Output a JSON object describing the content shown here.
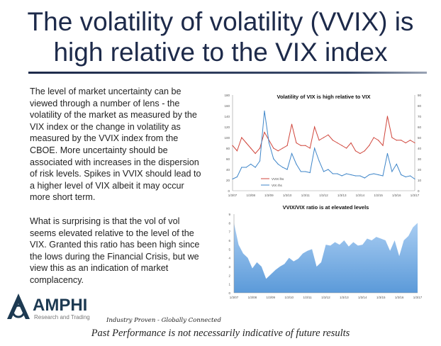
{
  "slide": {
    "title_lines": [
      "The volatility of volatility (VVIX) is",
      "high relative to the VIX index"
    ],
    "paragraph1": [
      "The level of market uncertainty can be",
      "viewed through  a number of lens - the",
      "volatility of the market as measured by the",
      "VIX index or the change in volatility as",
      "measured by the VVIX index from the",
      "CBOE. More uncertainty should be",
      "associated with increases in the dispersion",
      "of risk levels. Spikes in VVIX should lead to",
      "a higher level of VIX albeit it may occur",
      "more short term."
    ],
    "paragraph2": [
      "What is surprising is that the vol of vol",
      "seems elevated relative to the level of the",
      "VIX. Granted this ratio has been high since",
      "the lows during the Financial Crisis, but we",
      "view this as an indication of market",
      "complacency."
    ],
    "logo": {
      "name": "AMPHI",
      "subtitle": "Research and Trading"
    },
    "tagline": "Industry Proven - Globally Connected",
    "disclaimer": "Past Performance is not necessarily indicative of future results",
    "colors": {
      "title": "#1d2a4a",
      "vvix": "#d0463c",
      "vix": "#3f86c9",
      "ratio_fill": "#5b9ad9"
    }
  },
  "chart_data": [
    {
      "type": "line",
      "title": "Volatility of VIX is high relative to VIX",
      "x_ticks": [
        "1/3/07",
        "1/3/08",
        "1/3/09",
        "1/3/10",
        "1/3/11",
        "1/3/12",
        "1/3/13",
        "1/3/14",
        "1/3/15",
        "1/3/16",
        "1/3/17"
      ],
      "x": [
        "2007Q1",
        "2007Q2",
        "2007Q3",
        "2007Q4",
        "2008Q1",
        "2008Q2",
        "2008Q3",
        "2008Q4",
        "2009Q1",
        "2009Q2",
        "2009Q3",
        "2009Q4",
        "2010Q1",
        "2010Q2",
        "2010Q3",
        "2010Q4",
        "2011Q1",
        "2011Q2",
        "2011Q3",
        "2011Q4",
        "2012Q1",
        "2012Q2",
        "2012Q3",
        "2012Q4",
        "2013Q1",
        "2013Q2",
        "2013Q3",
        "2013Q4",
        "2014Q1",
        "2014Q2",
        "2014Q3",
        "2014Q4",
        "2015Q1",
        "2015Q2",
        "2015Q3",
        "2015Q4",
        "2016Q1",
        "2016Q2",
        "2016Q3",
        "2016Q4",
        "2017Q1"
      ],
      "y_left": {
        "min": 0,
        "max": 180,
        "ticks": [
          0,
          20,
          40,
          60,
          80,
          100,
          120,
          140,
          160,
          180
        ]
      },
      "y_right": {
        "min": 0,
        "max": 90,
        "ticks": [
          0,
          10,
          20,
          30,
          40,
          50,
          60,
          70,
          80,
          90
        ]
      },
      "series": [
        {
          "name": "VVIX lhs",
          "axis": "left",
          "values": [
            85,
            75,
            100,
            90,
            80,
            70,
            80,
            110,
            95,
            80,
            75,
            80,
            85,
            125,
            90,
            85,
            85,
            80,
            120,
            95,
            100,
            105,
            95,
            90,
            85,
            80,
            90,
            75,
            70,
            75,
            85,
            100,
            95,
            85,
            140,
            100,
            95,
            95,
            90,
            95,
            90
          ]
        },
        {
          "name": "VIX rhs",
          "axis": "right",
          "values": [
            11,
            13,
            22,
            22,
            25,
            22,
            28,
            75,
            45,
            30,
            25,
            22,
            20,
            35,
            25,
            18,
            18,
            17,
            40,
            28,
            18,
            20,
            16,
            16,
            14,
            16,
            15,
            14,
            14,
            12,
            15,
            16,
            15,
            14,
            35,
            18,
            25,
            15,
            13,
            14,
            11
          ]
        }
      ],
      "legend": "lower-left",
      "grid": false
    },
    {
      "type": "area",
      "title": "VVIX/VIX ratio is at elevated levels",
      "x_ticks": [
        "1/3/07",
        "1/3/08",
        "1/3/09",
        "1/3/10",
        "1/3/11",
        "1/3/12",
        "1/3/13",
        "1/3/14",
        "1/3/15",
        "1/3/16",
        "1/3/17"
      ],
      "y": {
        "min": 0,
        "max": 9,
        "ticks": [
          0,
          1,
          2,
          3,
          4,
          5,
          6,
          7,
          8,
          9
        ]
      },
      "values": [
        8,
        5.5,
        4.5,
        4,
        2.8,
        3.5,
        3,
        1.6,
        2.1,
        2.6,
        3,
        3.3,
        4,
        3.6,
        3.9,
        4.5,
        4.8,
        5,
        3,
        3.5,
        5.5,
        5.4,
        5.8,
        5.5,
        6,
        5.3,
        5.8,
        5.4,
        5.5,
        6.2,
        6,
        6.4,
        6.2,
        6,
        4.8,
        6,
        4.2,
        6,
        6.5,
        7.5,
        8
      ],
      "grid": false
    }
  ]
}
